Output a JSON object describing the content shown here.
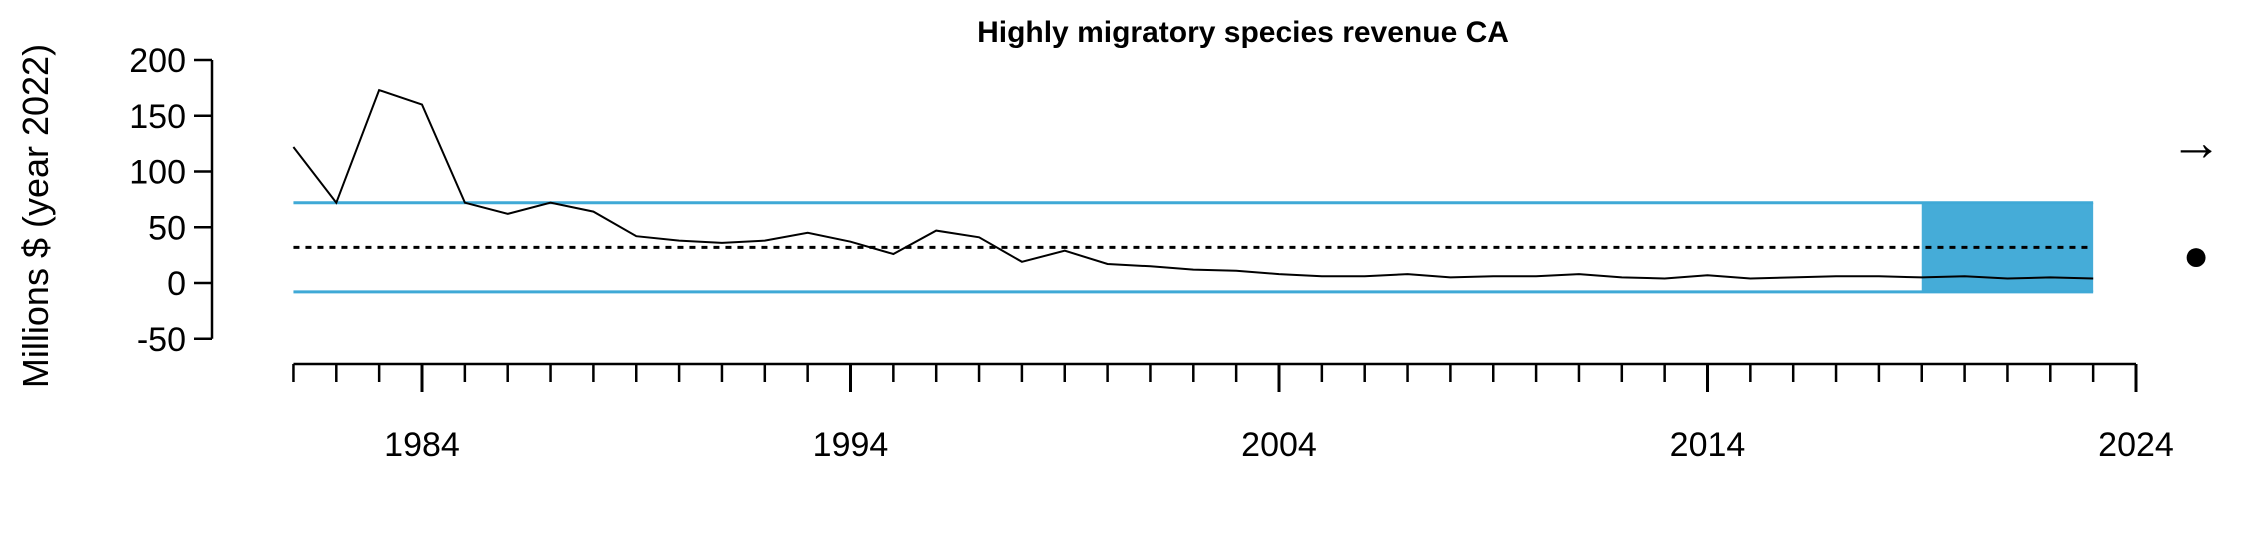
{
  "chart_data": {
    "type": "line",
    "title": "Highly migratory species revenue CA",
    "xlabel": "",
    "ylabel": "Millions $ (year 2022)",
    "xlim": [
      1980,
      2024
    ],
    "ylim": [
      -50,
      200
    ],
    "x_ticks": [
      1984,
      1994,
      2004,
      2014,
      2024
    ],
    "y_ticks": [
      200,
      150,
      100,
      50,
      0,
      -50
    ],
    "grid": false,
    "series": [
      {
        "x": [
          1981,
          1982,
          1983,
          1984,
          1985,
          1986,
          1987,
          1988,
          1989,
          1990,
          1991,
          1992,
          1993,
          1994,
          1995,
          1996,
          1997,
          1998,
          1999,
          2000,
          2001,
          2002,
          2003,
          2004,
          2005,
          2006,
          2007,
          2008,
          2009,
          2010,
          2011,
          2012,
          2013,
          2014,
          2015,
          2016,
          2017,
          2018,
          2019,
          2020,
          2021,
          2022,
          2023
        ],
        "values": [
          122,
          72,
          173,
          160,
          72,
          62,
          72,
          64,
          42,
          38,
          36,
          38,
          45,
          37,
          26,
          47,
          41,
          19,
          29,
          17,
          15,
          12,
          11,
          8,
          6,
          6,
          8,
          5,
          6,
          6,
          8,
          5,
          4,
          7,
          4,
          5,
          6,
          6,
          5,
          6,
          4,
          5,
          4
        ]
      }
    ],
    "reference_lines": {
      "mean": 32,
      "upper_sd": 72,
      "lower_sd": -8
    },
    "highlight_period": [
      2019,
      2023
    ],
    "trend_symbol": "→",
    "mean_symbol": "●",
    "colors": {
      "line": "#000000",
      "sd_lines": "#3fa9d6",
      "highlight": "#45acd8"
    }
  }
}
